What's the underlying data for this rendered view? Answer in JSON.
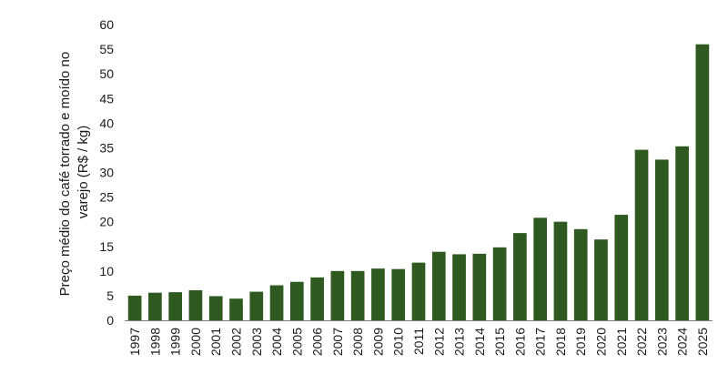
{
  "chart_data": {
    "type": "bar",
    "title": "",
    "ylabel_lines": [
      "Preço médio do café torrado e moído no",
      "varejo (R$ / kg)"
    ],
    "xlabel": "",
    "ylim": [
      0,
      60
    ],
    "yticks": [
      "0",
      "5",
      "10",
      "15",
      "20",
      "25",
      "30",
      "35",
      "40",
      "45",
      "50",
      "55",
      "60"
    ],
    "grid": false,
    "legend": "none",
    "categories": [
      "1997",
      "1998",
      "1999",
      "2000",
      "2001",
      "2002",
      "2003",
      "2004",
      "2005",
      "2006",
      "2007",
      "2008",
      "2009",
      "2010",
      "2011",
      "2012",
      "2013",
      "2014",
      "2015",
      "2016",
      "2017",
      "2018",
      "2019",
      "2020",
      "2021",
      "2022",
      "2023",
      "2024",
      "2025"
    ],
    "values": [
      5.0,
      5.6,
      5.7,
      6.1,
      4.9,
      4.4,
      5.8,
      7.1,
      7.8,
      8.7,
      10.0,
      10.0,
      10.5,
      10.4,
      11.7,
      13.9,
      13.4,
      13.5,
      14.8,
      17.7,
      20.8,
      20.0,
      18.5,
      16.4,
      21.4,
      34.6,
      32.6,
      35.3,
      56.0
    ],
    "colors": {
      "bar": "#2f5a1f",
      "axis": "#7f7f7f"
    }
  }
}
